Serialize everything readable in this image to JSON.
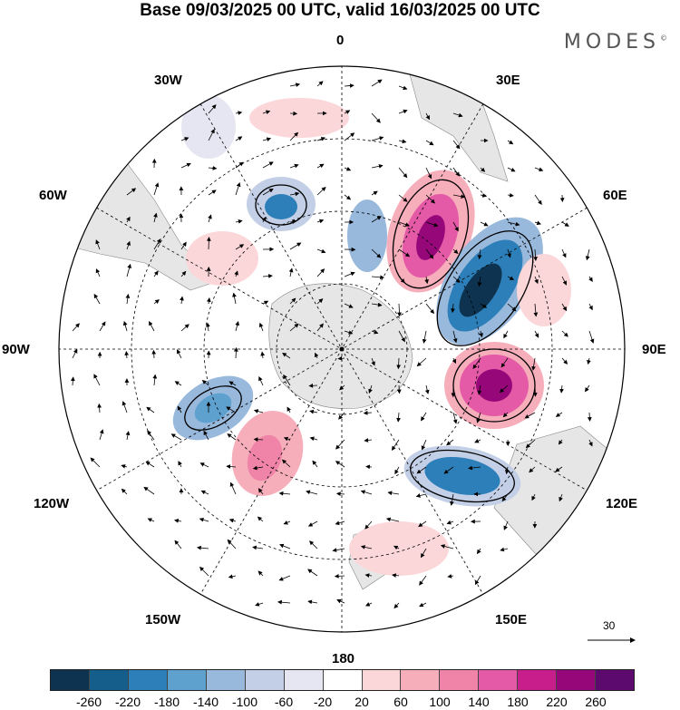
{
  "header": {
    "title": "Base 09/03/2025 00 UTC, valid 16/03/2025 00 UTC",
    "brand": "MODES"
  },
  "map": {
    "projection": "south-polar-stereographic",
    "longitude_labels": [
      "0",
      "30E",
      "60E",
      "90E",
      "120E",
      "150E",
      "180",
      "150W",
      "120W",
      "90W",
      "60W",
      "30W"
    ],
    "reference_vector_label": "30",
    "land_color": "#e6e6e6"
  },
  "colorbar": {
    "colors": [
      "#0d3350",
      "#155e8c",
      "#2c7fb8",
      "#5ea1cf",
      "#98b8dc",
      "#c3cfe6",
      "#e6e6f2",
      "#ffffff",
      "#fbd7da",
      "#f6aebb",
      "#ef84a8",
      "#e55aa6",
      "#c81e8c",
      "#96077a",
      "#5c0a6e"
    ],
    "tick_labels": [
      "-260",
      "-220",
      "-180",
      "-140",
      "-100",
      "-60",
      "-20",
      "20",
      "60",
      "100",
      "140",
      "180",
      "220",
      "260"
    ]
  }
}
